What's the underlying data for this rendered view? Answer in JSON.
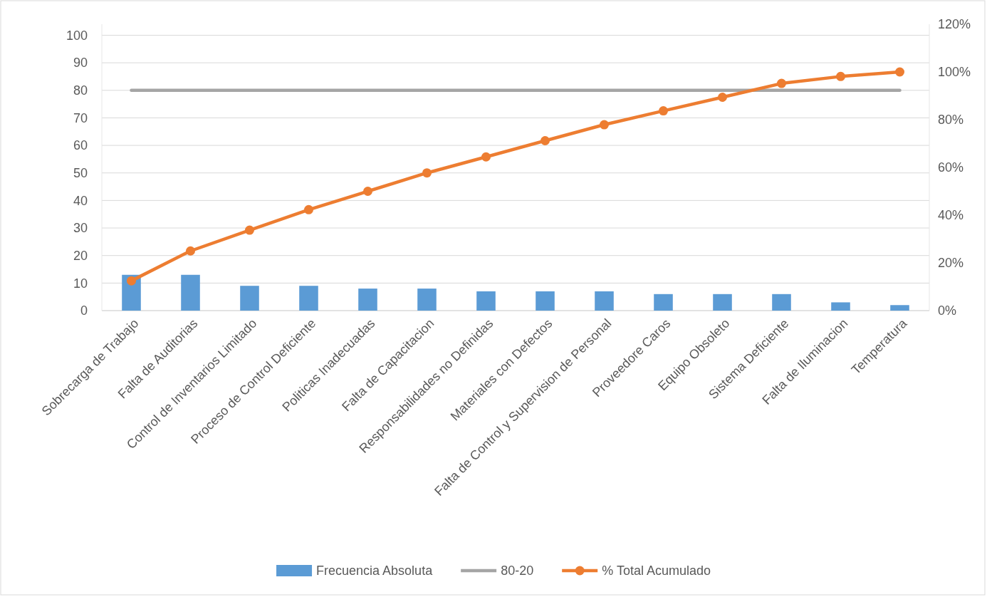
{
  "chart_data": {
    "type": "bar",
    "categories": [
      "Sobrecarga de Trabajo",
      "Falta de Auditorias",
      "Control de Inventarios Limitado",
      "Proceso de Control Deficiente",
      "Politicas Inadecuadas",
      "Falta de Capacitacion",
      "Responsabilidades no Definidas",
      "Materiales con Defectos",
      "Falta de Control y Supervision de Personal",
      "Proveedore Caros",
      "Equipo Obsoleto",
      "Sistema Deficiente",
      "Falta de Iluminacion",
      "Temperatura"
    ],
    "series": [
      {
        "name": "Frecuencia Absoluta",
        "color": "#5b9bd5",
        "values": [
          13,
          13,
          9,
          9,
          8,
          8,
          7,
          7,
          7,
          6,
          6,
          6,
          3,
          2
        ]
      },
      {
        "name": "80-20",
        "type": "line",
        "color": "#a5a5a5",
        "marker": "none",
        "values": [
          80,
          80,
          80,
          80,
          80,
          80,
          80,
          80,
          80,
          80,
          80,
          80,
          80,
          80
        ]
      },
      {
        "name": "% Total Acumulado",
        "type": "line",
        "axis": "y2",
        "color": "#ed7d31",
        "marker": "circle",
        "values": [
          12.5,
          25,
          33.7,
          42.3,
          50,
          57.7,
          64.4,
          71.2,
          77.9,
          83.7,
          89.4,
          95.2,
          98.1,
          100
        ]
      }
    ],
    "ylim": [
      0,
      104
    ],
    "yticks": [
      0,
      10,
      20,
      30,
      40,
      50,
      60,
      70,
      80,
      90,
      100
    ],
    "y2lim": [
      0,
      120
    ],
    "y2ticks": [
      {
        "value": 0,
        "label": "0%"
      },
      {
        "value": 20,
        "label": "20%"
      },
      {
        "value": 40,
        "label": "40%"
      },
      {
        "value": 60,
        "label": "60%"
      },
      {
        "value": 80,
        "label": "80%"
      },
      {
        "value": 100,
        "label": "100%"
      },
      {
        "value": 120,
        "label": "120%"
      }
    ],
    "grid": "y",
    "legend": "bottom",
    "line_style": "solid"
  }
}
